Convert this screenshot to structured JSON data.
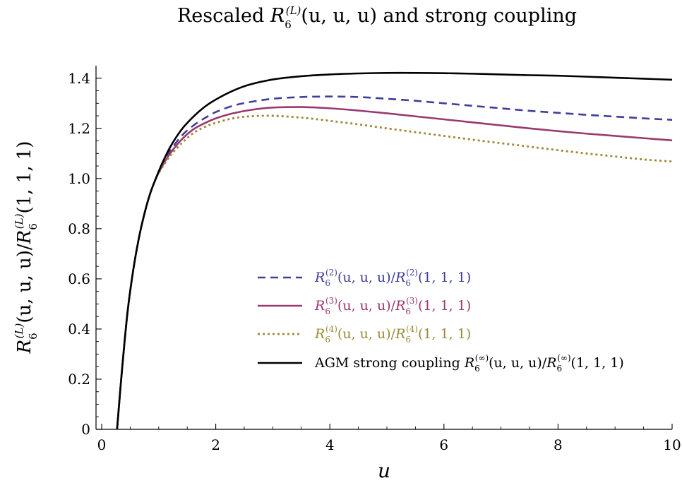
{
  "chart_data": {
    "type": "line",
    "title": {
      "pre": "Rescaled ",
      "R": "R",
      "sub": "6",
      "sup": "(L)",
      "post": "(u, u, u) and strong coupling"
    },
    "xlabel": "u",
    "ylabel": {
      "R": "R",
      "sub": "6",
      "sup": "(L)",
      "mid": "(u, u, u)/",
      "post": "(1, 1, 1)"
    },
    "xlim": [
      0,
      10
    ],
    "ylim": [
      0,
      1.45
    ],
    "x_ticks": [
      0,
      2,
      4,
      6,
      8,
      10
    ],
    "y_ticks": [
      0,
      0.2,
      0.4,
      0.6,
      0.8,
      1.0,
      1.2,
      1.4
    ],
    "x_tick_labels": [
      "0",
      "2",
      "4",
      "6",
      "8",
      "10"
    ],
    "y_tick_labels": [
      "0",
      "0.2",
      "0.4",
      "0.6",
      "0.8",
      "1.0",
      "1.2",
      "1.4"
    ],
    "legend_position": "center",
    "series": [
      {
        "name": "R6(2)(u,u,u)/R6(2)(1,1,1)",
        "label": {
          "R": "R",
          "sub": "6",
          "sup": "(2)",
          "mid": "(u, u, u)/",
          "post": "(1, 1, 1)"
        },
        "color": "#3f3f9a",
        "style": "dashed",
        "x": [
          0.27,
          0.35,
          0.45,
          0.55,
          0.65,
          0.75,
          0.85,
          0.95,
          1.05,
          1.2,
          1.4,
          1.6,
          1.8,
          2.0,
          2.3,
          2.6,
          3.0,
          3.5,
          4.0,
          4.5,
          5.0,
          5.5,
          6.0,
          6.5,
          7.0,
          7.5,
          8.0,
          8.5,
          9.0,
          9.5,
          10.0
        ],
        "y": [
          0.0,
          0.22,
          0.46,
          0.63,
          0.76,
          0.86,
          0.94,
          1.0,
          1.05,
          1.11,
          1.17,
          1.21,
          1.24,
          1.265,
          1.29,
          1.305,
          1.318,
          1.325,
          1.327,
          1.325,
          1.318,
          1.31,
          1.3,
          1.29,
          1.28,
          1.27,
          1.262,
          1.254,
          1.247,
          1.24,
          1.234
        ]
      },
      {
        "name": "R6(3)(u,u,u)/R6(3)(1,1,1)",
        "label": {
          "R": "R",
          "sub": "6",
          "sup": "(3)",
          "mid": "(u, u, u)/",
          "post": "(1, 1, 1)"
        },
        "color": "#993a6e",
        "style": "solid",
        "x": [
          0.27,
          0.35,
          0.45,
          0.55,
          0.65,
          0.75,
          0.85,
          0.95,
          1.05,
          1.2,
          1.4,
          1.6,
          1.8,
          2.0,
          2.3,
          2.6,
          3.0,
          3.5,
          4.0,
          4.5,
          5.0,
          5.5,
          6.0,
          6.5,
          7.0,
          7.5,
          8.0,
          8.5,
          9.0,
          9.5,
          10.0
        ],
        "y": [
          0.0,
          0.22,
          0.46,
          0.63,
          0.76,
          0.86,
          0.94,
          1.0,
          1.045,
          1.1,
          1.155,
          1.195,
          1.22,
          1.24,
          1.26,
          1.273,
          1.283,
          1.285,
          1.28,
          1.271,
          1.26,
          1.248,
          1.236,
          1.224,
          1.212,
          1.2,
          1.189,
          1.179,
          1.17,
          1.161,
          1.152
        ]
      },
      {
        "name": "R6(4)(u,u,u)/R6(4)(1,1,1)",
        "label": {
          "R": "R",
          "sub": "6",
          "sup": "(4)",
          "mid": "(u, u, u)/",
          "post": "(1, 1, 1)"
        },
        "color": "#9a8a3a",
        "style": "dotted",
        "x": [
          0.27,
          0.35,
          0.45,
          0.55,
          0.65,
          0.75,
          0.85,
          0.95,
          1.05,
          1.2,
          1.4,
          1.6,
          1.8,
          2.0,
          2.3,
          2.6,
          3.0,
          3.5,
          4.0,
          4.5,
          5.0,
          5.5,
          6.0,
          6.5,
          7.0,
          7.5,
          8.0,
          8.5,
          9.0,
          9.5,
          10.0
        ],
        "y": [
          0.0,
          0.22,
          0.46,
          0.63,
          0.76,
          0.86,
          0.94,
          1.0,
          1.04,
          1.09,
          1.14,
          1.18,
          1.205,
          1.222,
          1.24,
          1.248,
          1.25,
          1.243,
          1.23,
          1.216,
          1.2,
          1.185,
          1.17,
          1.155,
          1.141,
          1.127,
          1.113,
          1.1,
          1.088,
          1.076,
          1.068
        ]
      },
      {
        "name": "AGM strong coupling R6(inf)(u,u,u)/R6(inf)(1,1,1)",
        "label": {
          "pre": "AGM strong coupling ",
          "R": "R",
          "sub": "6",
          "sup": "(∞)",
          "mid": "(u, u, u)/",
          "post": "(1, 1, 1)"
        },
        "color": "#000000",
        "style": "solid",
        "x": [
          0.27,
          0.35,
          0.45,
          0.55,
          0.65,
          0.75,
          0.85,
          0.95,
          1.05,
          1.2,
          1.4,
          1.6,
          1.8,
          2.0,
          2.3,
          2.6,
          3.0,
          3.5,
          4.0,
          4.5,
          5.0,
          5.5,
          6.0,
          6.5,
          7.0,
          7.5,
          8.0,
          8.5,
          9.0,
          9.5,
          10.0
        ],
        "y": [
          0.0,
          0.22,
          0.46,
          0.63,
          0.76,
          0.86,
          0.94,
          1.0,
          1.055,
          1.125,
          1.195,
          1.245,
          1.285,
          1.315,
          1.35,
          1.375,
          1.395,
          1.408,
          1.415,
          1.419,
          1.421,
          1.421,
          1.42,
          1.418,
          1.415,
          1.412,
          1.41,
          1.406,
          1.402,
          1.398,
          1.394
        ]
      }
    ]
  }
}
